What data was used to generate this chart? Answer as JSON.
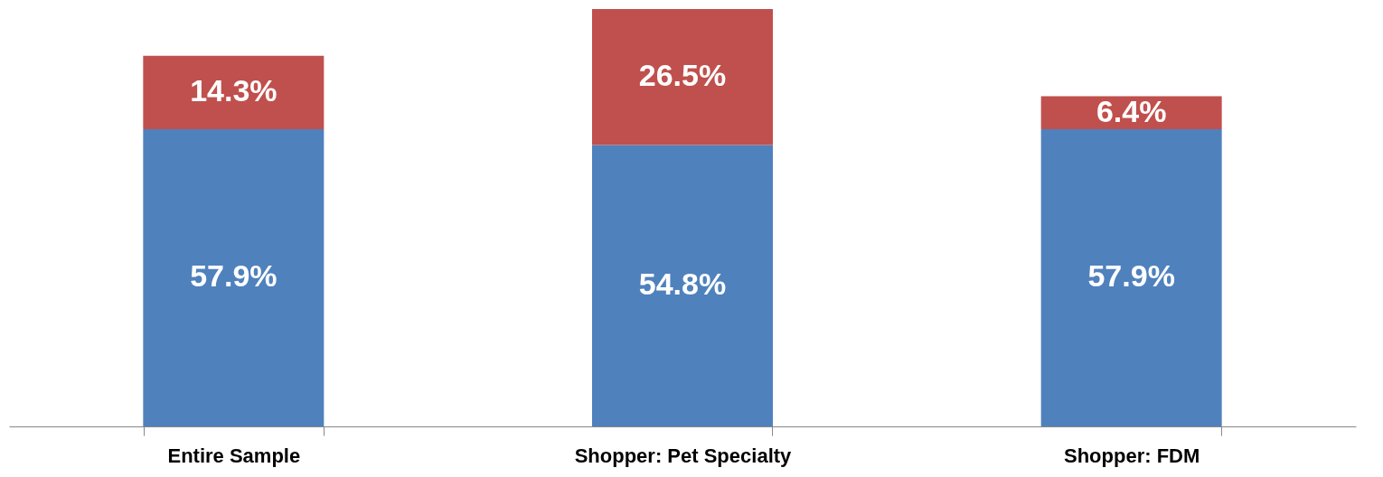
{
  "chart_data": {
    "type": "bar",
    "stacked": true,
    "categories": [
      "Entire Sample",
      "Shopper: Pet Specialty",
      "Shopper: FDM"
    ],
    "series": [
      {
        "color": "#4f81bd",
        "values": [
          57.9,
          54.8,
          57.9
        ],
        "value_labels": [
          "57.9%",
          "54.8%",
          "57.9%"
        ]
      },
      {
        "color": "#c0504d",
        "values": [
          14.3,
          26.5,
          6.4
        ],
        "value_labels": [
          "14.3%",
          "26.5%",
          "6.4%"
        ]
      }
    ],
    "grid": false,
    "tick_labels": "x"
  }
}
